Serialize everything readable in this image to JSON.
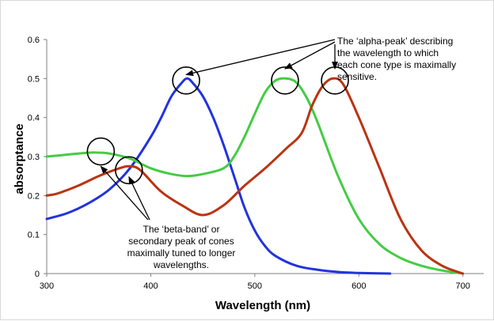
{
  "chart_data": {
    "type": "line",
    "title": "",
    "xlabel": "Wavelength (nm)",
    "ylabel": "absorptance",
    "xlim": [
      300,
      720
    ],
    "ylim": [
      0,
      0.6
    ],
    "x_ticks": [
      300,
      400,
      500,
      600,
      700
    ],
    "y_ticks": [
      0,
      0.1,
      0.2,
      0.3,
      0.4,
      0.5,
      0.6
    ],
    "x_tick_labels": [
      "300",
      "400",
      "500",
      "600",
      "700"
    ],
    "y_tick_labels": [
      "0",
      "0.1",
      "0.2",
      "0.3",
      "0.4",
      "0.5",
      "0.6"
    ],
    "grid": false,
    "legend": "none",
    "series": [
      {
        "color": "#2233dd",
        "x": [
          300,
          320,
          340,
          360,
          380,
          400,
          410,
          420,
          430,
          435,
          440,
          450,
          460,
          470,
          480,
          490,
          500,
          510,
          520,
          540,
          560,
          580,
          600,
          630
        ],
        "y": [
          0.14,
          0.155,
          0.18,
          0.215,
          0.27,
          0.35,
          0.4,
          0.455,
          0.49,
          0.5,
          0.49,
          0.455,
          0.4,
          0.33,
          0.25,
          0.17,
          0.11,
          0.07,
          0.045,
          0.02,
          0.01,
          0.004,
          0.0015,
          0
        ]
      },
      {
        "color": "#44cc44",
        "x": [
          300,
          320,
          340,
          350,
          360,
          380,
          400,
          420,
          435,
          450,
          470,
          480,
          490,
          500,
          510,
          520,
          530,
          540,
          550,
          560,
          580,
          600,
          620,
          640,
          660,
          680,
          700
        ],
        "y": [
          0.3,
          0.305,
          0.31,
          0.31,
          0.308,
          0.295,
          0.27,
          0.255,
          0.25,
          0.255,
          0.27,
          0.3,
          0.35,
          0.41,
          0.465,
          0.495,
          0.5,
          0.49,
          0.45,
          0.39,
          0.25,
          0.14,
          0.075,
          0.04,
          0.02,
          0.008,
          0
        ]
      },
      {
        "color": "#bb3311",
        "x": [
          300,
          310,
          330,
          350,
          370,
          380,
          390,
          410,
          430,
          450,
          470,
          490,
          510,
          530,
          545,
          555,
          565,
          575,
          585,
          600,
          620,
          640,
          660,
          680,
          700
        ],
        "y": [
          0.2,
          0.205,
          0.225,
          0.25,
          0.27,
          0.275,
          0.265,
          0.21,
          0.175,
          0.15,
          0.175,
          0.225,
          0.27,
          0.32,
          0.36,
          0.43,
          0.48,
          0.5,
          0.485,
          0.4,
          0.27,
          0.14,
          0.06,
          0.02,
          0
        ]
      }
    ],
    "annotations": [
      {
        "lines": [
          "The ‘alpha-peak’ describing",
          "the wavelength to which",
          "each cone type is maximally",
          "sensitive."
        ],
        "circles": [
          [
            434,
            0.495
          ],
          [
            529,
            0.495
          ],
          [
            577,
            0.495
          ]
        ],
        "arrow_targets": [
          [
            434,
            0.51
          ],
          [
            529,
            0.525
          ],
          [
            577,
            0.525
          ]
        ]
      },
      {
        "lines": [
          "The ‘beta-band’ or",
          "secondary peak of cones",
          "maximally tuned to longer",
          "wavelengths."
        ],
        "circles": [
          [
            352,
            0.313
          ],
          [
            379,
            0.265
          ]
        ],
        "arrow_targets": [
          [
            352,
            0.275
          ],
          [
            379,
            0.248
          ]
        ]
      }
    ]
  }
}
